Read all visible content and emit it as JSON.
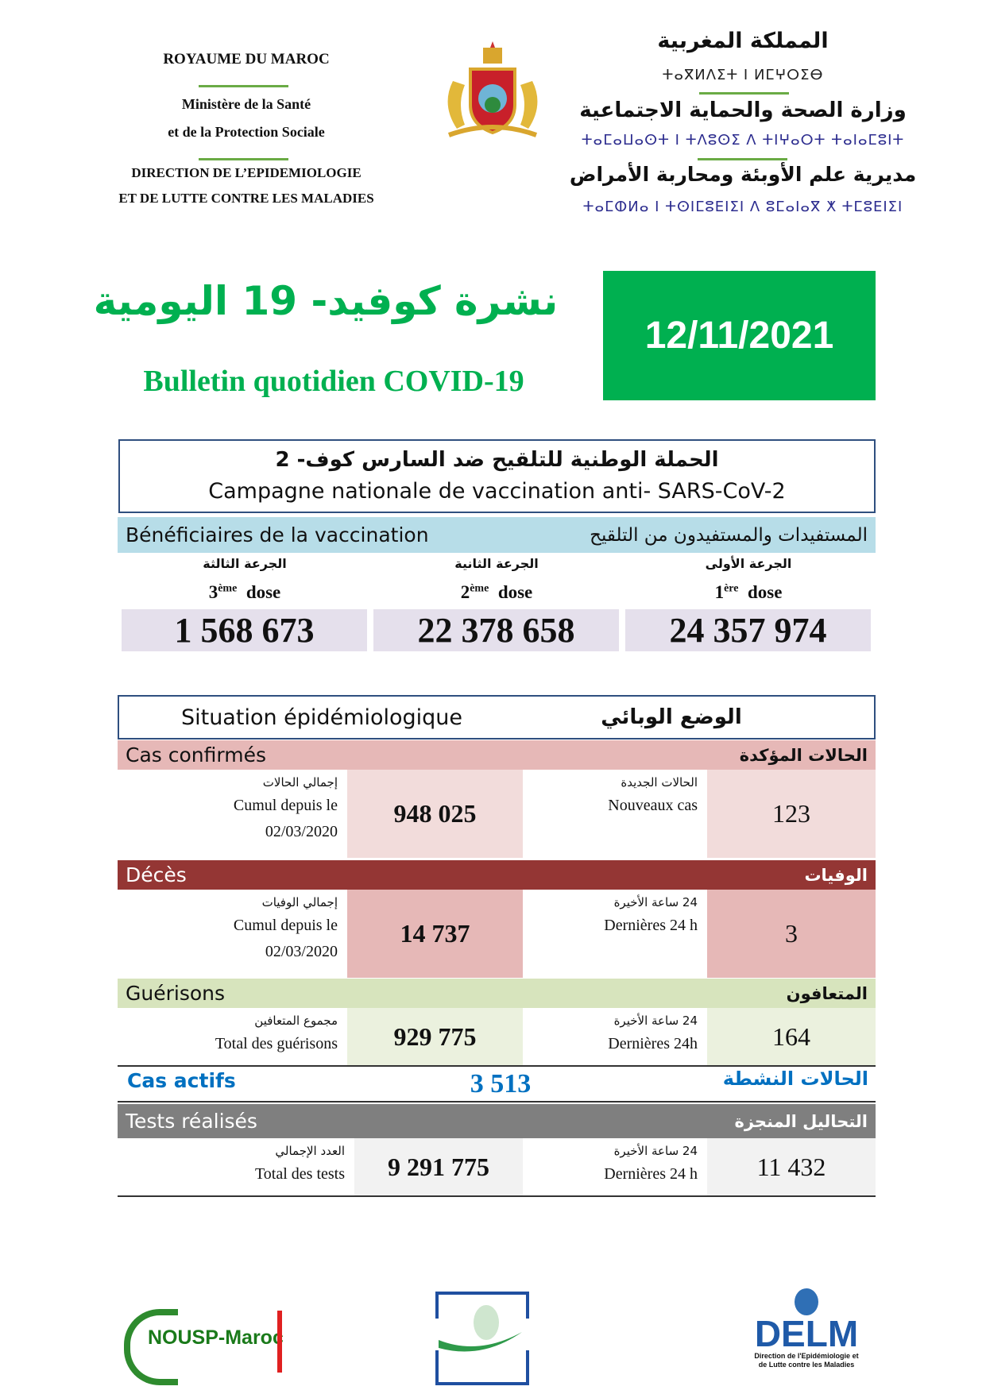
{
  "header": {
    "fr_country": "ROYAUME DU MAROC",
    "fr_ministry_1": "Ministère de la Santé",
    "fr_ministry_2": "et de la Protection Sociale",
    "fr_direction_1": "DIRECTION DE L’EPIDEMIOLOGIE",
    "fr_direction_2": "ET DE LUTTE CONTRE LES MALADIES",
    "ar_country": "المملكة المغربية",
    "tif_country": "ⵜⴰⴳⵍⴷⵉⵜ ⵏ ⵍⵎⵖⵔⵉⴱ",
    "ar_ministry": "وزارة الصحة والحماية الاجتماعية",
    "tif_ministry": "ⵜⴰⵎⴰⵡⴰⵙⵜ ⵏ ⵜⴷⵓⵙⵉ ⴷ ⵜⵏⵖⴰⵔⵜ ⵜⴰⵏⴰⵎⵓⵏⵜ",
    "ar_direction": "مديرية علم الأوبئة ومحاربة الأمراض",
    "tif_direction": "ⵜⴰⵎⵀⵍⴰ ⵏ ⵜⵙⵏⵎⵓⴹⵏⵉⵏ ⴷ ⵓⵎⴰⵏⴰⴳ ⵅ ⵜⵎⵓⴹⵏⵉⵏ"
  },
  "title": {
    "ar": "نشرة كوفيد- 19 اليومية",
    "fr": "Bulletin quotidien COVID-19",
    "date": "12/11/2021"
  },
  "colors": {
    "green": "#00b050",
    "blue_band": "#b7dde8",
    "dose_box": "#e5e0ec",
    "confirmed_band": "#e6b8b7",
    "confirmed_cell": "#f2dcdb",
    "deaths_band": "#943634",
    "recovered_band": "#d7e4bd",
    "recovered_cell": "#ebf1de",
    "tests_band": "#7f7f7f",
    "tests_cell": "#f2f2f2",
    "active": "#0070c0"
  },
  "vaccination": {
    "title_ar": "الحملة الوطنية للتلقيح ضد السارس كوف- 2",
    "title_fr": "Campagne nationale de vaccination anti- SARS-CoV-2",
    "band_fr": "Bénéficiaires de la vaccination",
    "band_ar": "المستفيدات والمستفيدون من التلقيح",
    "doses": [
      {
        "ar": "الجرعة الثالثة",
        "num": "3",
        "sup": "ème",
        "word": "dose",
        "value": "1 568 673"
      },
      {
        "ar": "الجرعة الثانية",
        "num": "2",
        "sup": "ème",
        "word": "dose",
        "value": "22 378 658"
      },
      {
        "ar": "الجرعة الأولى",
        "num": "1",
        "sup": "ère",
        "word": "dose",
        "value": "24 357 974"
      }
    ]
  },
  "situation": {
    "title_fr": "Situation épidémiologique",
    "title_ar": "الوضع الوبائي"
  },
  "confirmed": {
    "fr": "Cas confirmés",
    "ar": "الحالات المؤكدة",
    "cum_ar": "إجمالي الحالات",
    "cum_fr": "Cumul depuis le",
    "cum_date": "02/03/2020",
    "cum_value": "948 025",
    "new_ar": "الحالات الجديدة",
    "new_fr": "Nouveaux cas",
    "new_value": "123"
  },
  "deaths": {
    "fr": "Décès",
    "ar": "الوفيات",
    "cum_ar": "إجمالي الوفيات",
    "cum_fr": "Cumul depuis le",
    "cum_date": "02/03/2020",
    "cum_value": "14 737",
    "new_ar": "24 ساعة الأخيرة",
    "new_fr": "Dernières 24 h",
    "new_value": "3"
  },
  "recovered": {
    "fr": "Guérisons",
    "ar": "المتعافون",
    "cum_ar": "مجموع المتعافين",
    "cum_fr": "Total des guérisons",
    "cum_value": "929 775",
    "new_ar": "24 ساعة الأخيرة",
    "new_fr": "Dernières 24h",
    "new_value": "164"
  },
  "active": {
    "fr": "Cas actifs",
    "ar": "الحالات النشطة",
    "value": "3 513"
  },
  "tests": {
    "fr": "Tests réalisés",
    "ar": "التحاليل المنجزة",
    "cum_ar": "العدد الإجمالي",
    "cum_fr": "Total des tests",
    "cum_value": "9 291 775",
    "new_ar": "24 ساعة الأخيرة",
    "new_fr": "Dernières 24 h",
    "new_value": "11 432"
  },
  "footer": {
    "logo1": "NOUSP-Maroc",
    "logo3": "DELM",
    "logo3_sub": "Direction de l'Epidémiologie et de Lutte contre les Maladies"
  }
}
